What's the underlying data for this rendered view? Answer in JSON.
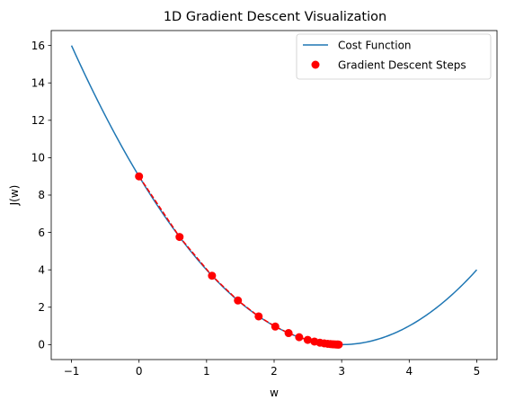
{
  "chart_data": {
    "type": "line",
    "title": "1D Gradient Descent Visualization",
    "xlabel": "w",
    "ylabel": "J(w)",
    "xlim": [
      -1.3,
      5.3
    ],
    "ylim": [
      -0.8,
      16.8
    ],
    "xticks": [
      -1,
      0,
      1,
      2,
      3,
      4,
      5
    ],
    "xtick_labels": [
      "−1",
      "0",
      "1",
      "2",
      "3",
      "4",
      "5"
    ],
    "yticks": [
      0,
      2,
      4,
      6,
      8,
      10,
      12,
      14,
      16
    ],
    "ytick_labels": [
      "0",
      "2",
      "4",
      "6",
      "8",
      "10",
      "12",
      "14",
      "16"
    ],
    "grid": false,
    "legend_position": "top-right",
    "series": [
      {
        "name": "Cost Function",
        "kind": "line",
        "function": "(w - 3)^2",
        "x_range": [
          -1,
          5
        ],
        "color": "#1f77b4"
      },
      {
        "name": "Gradient Descent Steps",
        "kind": "scatter",
        "color": "#ff0000",
        "x": [
          0,
          0.6,
          1.08,
          1.464,
          1.771,
          2.017,
          2.214,
          2.371,
          2.497,
          2.597,
          2.678,
          2.742,
          2.794,
          2.835,
          2.868,
          2.894,
          2.916,
          2.933,
          2.946,
          2.957
        ],
        "y": [
          9.0,
          5.76,
          3.686,
          2.359,
          1.51,
          0.966,
          0.618,
          0.396,
          0.253,
          0.162,
          0.104,
          0.066,
          0.042,
          0.027,
          0.017,
          0.011,
          0.007,
          0.005,
          0.003,
          0.002
        ]
      }
    ],
    "connector": {
      "style": "dashed",
      "color": "#ff0000",
      "connects": "Gradient Descent Steps"
    }
  }
}
